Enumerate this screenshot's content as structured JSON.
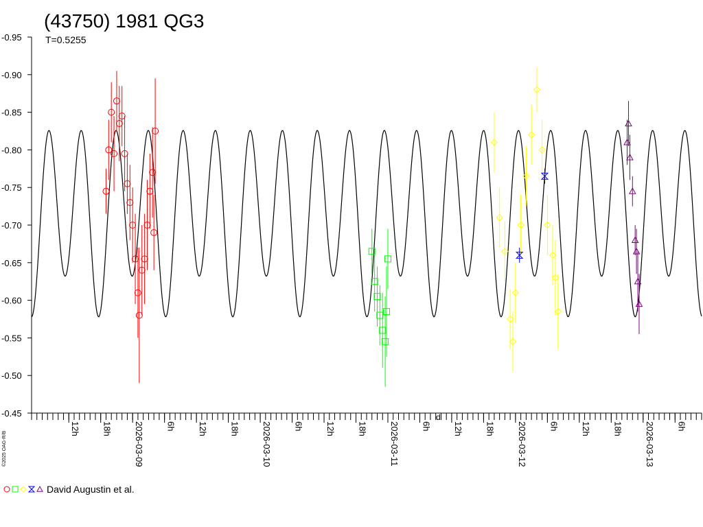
{
  "chart_data": {
    "type": "scatter",
    "title": "(43750) 1981 QG3",
    "subtitle": "T=0.5255",
    "copyright": "©2025 OAG-R/B",
    "credit": "David Augustin et al.",
    "axis_tick_mark": "d",
    "ylim": [
      -0.95,
      -0.45
    ],
    "y_reversed": true,
    "y_ticks": [
      "-0.95",
      "-0.90",
      "-0.85",
      "-0.80",
      "-0.75",
      "-0.70",
      "-0.65",
      "-0.60",
      "-0.55",
      "-0.50",
      "-0.45"
    ],
    "xlim": [
      "2026-03-08 05:00",
      "2026-03-13 11:00"
    ],
    "x_labels": [
      {
        "t": "2026-03-08 12:00",
        "label": "12h"
      },
      {
        "t": "2026-03-08 18:00",
        "label": "18h"
      },
      {
        "t": "2026-03-09 00:00",
        "label": "2026-03-09"
      },
      {
        "t": "2026-03-09 06:00",
        "label": "6h"
      },
      {
        "t": "2026-03-09 12:00",
        "label": "12h"
      },
      {
        "t": "2026-03-09 18:00",
        "label": "18h"
      },
      {
        "t": "2026-03-10 00:00",
        "label": "2026-03-10"
      },
      {
        "t": "2026-03-10 06:00",
        "label": "6h"
      },
      {
        "t": "2026-03-10 12:00",
        "label": "12h"
      },
      {
        "t": "2026-03-10 18:00",
        "label": "18h"
      },
      {
        "t": "2026-03-11 00:00",
        "label": "2026-03-11"
      },
      {
        "t": "2026-03-11 06:00",
        "label": "6h"
      },
      {
        "t": "2026-03-11 12:00",
        "label": "12h"
      },
      {
        "t": "2026-03-11 18:00",
        "label": "18h"
      },
      {
        "t": "2026-03-12 00:00",
        "label": "2026-03-12"
      },
      {
        "t": "2026-03-12 06:00",
        "label": "6h"
      },
      {
        "t": "2026-03-12 12:00",
        "label": "12h"
      },
      {
        "t": "2026-03-12 18:00",
        "label": "18h"
      },
      {
        "t": "2026-03-13 00:00",
        "label": "2026-03-13"
      },
      {
        "t": "2026-03-13 06:00",
        "label": "6h"
      }
    ],
    "model": {
      "color": "#000000",
      "period_hours": 12.612,
      "mean": -0.715,
      "amp1": 0.027,
      "amp2": 0.11,
      "phase_ref_time": "2026-03-08 05:00",
      "phase_offset_deg": 0
    },
    "series": [
      {
        "marker": "circle",
        "color": "#ff0000",
        "points": [
          [
            "2026-03-08 19:00",
            -0.745,
            0.03
          ],
          [
            "2026-03-08 19:30",
            -0.8,
            0.04
          ],
          [
            "2026-03-08 20:00",
            -0.85,
            0.04
          ],
          [
            "2026-03-08 20:30",
            -0.795,
            0.05
          ],
          [
            "2026-03-08 21:00",
            -0.865,
            0.04
          ],
          [
            "2026-03-08 21:30",
            -0.835,
            0.05
          ],
          [
            "2026-03-08 22:00",
            -0.845,
            0.04
          ],
          [
            "2026-03-08 22:30",
            -0.795,
            0.05
          ],
          [
            "2026-03-08 23:00",
            -0.755,
            0.04
          ],
          [
            "2026-03-08 23:30",
            -0.73,
            0.05
          ],
          [
            "2026-03-09 00:00",
            -0.7,
            0.05
          ],
          [
            "2026-03-09 00:30",
            -0.655,
            0.06
          ],
          [
            "2026-03-09 01:00",
            -0.61,
            0.06
          ],
          [
            "2026-03-09 01:15",
            -0.58,
            0.09
          ],
          [
            "2026-03-09 01:45",
            -0.64,
            0.06
          ],
          [
            "2026-03-09 02:15",
            -0.655,
            0.06
          ],
          [
            "2026-03-09 02:45",
            -0.7,
            0.06
          ],
          [
            "2026-03-09 03:15",
            -0.745,
            0.05
          ],
          [
            "2026-03-09 03:45",
            -0.77,
            0.06
          ],
          [
            "2026-03-09 04:15",
            -0.825,
            0.07
          ],
          [
            "2026-03-09 04:00",
            -0.69,
            0.05
          ]
        ]
      },
      {
        "marker": "square",
        "color": "#00ff00",
        "points": [
          [
            "2026-03-10 21:00",
            -0.665,
            0.03
          ],
          [
            "2026-03-10 21:30",
            -0.625,
            0.04
          ],
          [
            "2026-03-10 22:00",
            -0.605,
            0.04
          ],
          [
            "2026-03-10 22:30",
            -0.58,
            0.04
          ],
          [
            "2026-03-10 23:00",
            -0.56,
            0.05
          ],
          [
            "2026-03-10 23:30",
            -0.545,
            0.06
          ],
          [
            "2026-03-10 23:45",
            -0.585,
            0.06
          ],
          [
            "2026-03-11 00:00",
            -0.655,
            0.04
          ]
        ]
      },
      {
        "marker": "diamond",
        "color": "#ffff00",
        "points": [
          [
            "2026-03-11 20:00",
            -0.81,
            0.04
          ],
          [
            "2026-03-11 21:00",
            -0.71,
            0.04
          ],
          [
            "2026-03-11 22:00",
            -0.665,
            0.04
          ],
          [
            "2026-03-11 23:00",
            -0.575,
            0.04
          ],
          [
            "2026-03-11 23:30",
            -0.545,
            0.04
          ],
          [
            "2026-03-12 00:00",
            -0.61,
            0.04
          ],
          [
            "2026-03-12 01:00",
            -0.7,
            0.04
          ],
          [
            "2026-03-12 02:00",
            -0.765,
            0.04
          ],
          [
            "2026-03-12 03:00",
            -0.82,
            0.04
          ],
          [
            "2026-03-12 04:00",
            -0.88,
            0.03
          ],
          [
            "2026-03-12 05:00",
            -0.8,
            0.04
          ],
          [
            "2026-03-12 06:00",
            -0.7,
            0.04
          ],
          [
            "2026-03-12 07:00",
            -0.66,
            0.04
          ],
          [
            "2026-03-12 07:30",
            -0.63,
            0.05
          ],
          [
            "2026-03-12 08:00",
            -0.585,
            0.05
          ]
        ]
      },
      {
        "marker": "hourglass",
        "color": "#0000ff",
        "points": [
          [
            "2026-03-12 00:45",
            -0.66,
            0.01
          ],
          [
            "2026-03-12 05:30",
            -0.765,
            0.01
          ]
        ]
      },
      {
        "marker": "triangle",
        "color": "#800080",
        "points": [
          [
            "2026-03-12 21:00",
            -0.81,
            0.03
          ],
          [
            "2026-03-12 21:15",
            -0.835,
            0.03
          ],
          [
            "2026-03-12 21:30",
            -0.79,
            0.03
          ],
          [
            "2026-03-12 22:00",
            -0.745,
            0.02
          ],
          [
            "2026-03-12 22:30",
            -0.68,
            0.02
          ],
          [
            "2026-03-12 22:45",
            -0.665,
            0.03
          ],
          [
            "2026-03-12 23:00",
            -0.625,
            0.04
          ],
          [
            "2026-03-12 23:15",
            -0.595,
            0.04
          ]
        ]
      }
    ]
  }
}
